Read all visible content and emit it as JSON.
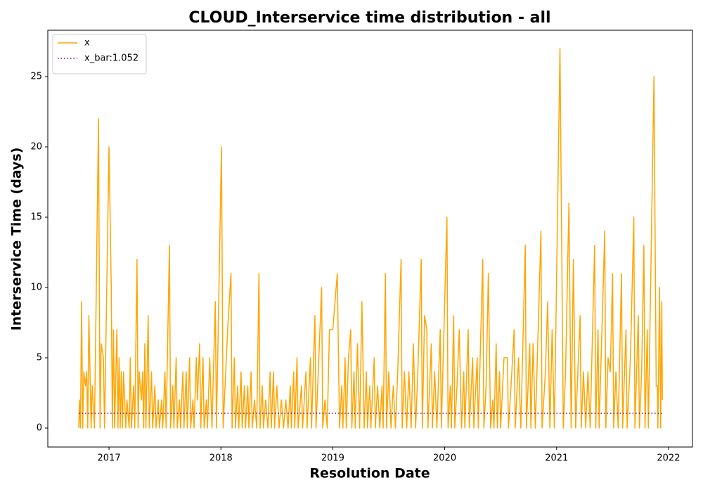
{
  "chart_data": {
    "type": "line",
    "title": "CLOUD_Interservice time distribution - all",
    "x_label": "Resolution Date",
    "y_label": "Interservice Time (days)",
    "xlim": [
      2016.453,
      2022.214
    ],
    "ylim": [
      -1.35,
      28.3
    ],
    "xticks": [
      2017,
      2018,
      2019,
      2020,
      2021,
      2022
    ],
    "yticks": [
      0,
      5,
      10,
      15,
      20,
      25
    ],
    "grid": false,
    "legend": "upper left",
    "series": [
      {
        "name": "x",
        "color": "#ffa500",
        "style": "solid",
        "x": [
          2016.73,
          2016.735,
          2016.745,
          2016.755,
          2016.765,
          2016.775,
          2016.79,
          2016.8,
          2016.81,
          2016.82,
          2016.84,
          2016.85,
          2016.87,
          2016.906,
          2016.92,
          2016.93,
          2016.95,
          2016.96,
          2017.0,
          2017.02,
          2017.03,
          2017.04,
          2017.05,
          2017.07,
          2017.08,
          2017.09,
          2017.1,
          2017.11,
          2017.12,
          2017.13,
          2017.15,
          2017.16,
          2017.18,
          2017.19,
          2017.2,
          2017.22,
          2017.23,
          2017.25,
          2017.26,
          2017.27,
          2017.29,
          2017.3,
          2017.31,
          2017.32,
          2017.33,
          2017.35,
          2017.36,
          2017.38,
          2017.39,
          2017.41,
          2017.42,
          2017.44,
          2017.45,
          2017.47,
          2017.48,
          2017.5,
          2017.51,
          2017.54,
          2017.55,
          2017.57,
          2017.58,
          2017.6,
          2017.61,
          2017.63,
          2017.64,
          2017.66,
          2017.67,
          2017.69,
          2017.7,
          2017.72,
          2017.73,
          2017.75,
          2017.76,
          2017.78,
          2017.79,
          2017.8,
          2017.81,
          2017.82,
          2017.84,
          2017.85,
          2017.87,
          2017.88,
          2017.9,
          2017.92,
          2017.95,
          2017.96,
          2018.005,
          2018.02,
          2018.06,
          2018.09,
          2018.1,
          2018.12,
          2018.13,
          2018.15,
          2018.16,
          2018.18,
          2018.19,
          2018.21,
          2018.22,
          2018.24,
          2018.25,
          2018.27,
          2018.28,
          2018.3,
          2018.32,
          2018.34,
          2018.35,
          2018.37,
          2018.38,
          2018.4,
          2018.42,
          2018.44,
          2018.45,
          2018.47,
          2018.48,
          2018.5,
          2018.52,
          2018.54,
          2018.56,
          2018.58,
          2018.6,
          2018.62,
          2018.63,
          2018.65,
          2018.66,
          2018.68,
          2018.69,
          2018.72,
          2018.73,
          2018.76,
          2018.77,
          2018.8,
          2018.81,
          2018.84,
          2018.85,
          2018.9,
          2018.91,
          2018.93,
          2018.95,
          2018.97,
          2019.0,
          2019.04,
          2019.06,
          2019.08,
          2019.09,
          2019.11,
          2019.12,
          2019.14,
          2019.16,
          2019.17,
          2019.19,
          2019.2,
          2019.22,
          2019.24,
          2019.26,
          2019.28,
          2019.3,
          2019.31,
          2019.33,
          2019.34,
          2019.37,
          2019.38,
          2019.4,
          2019.42,
          2019.44,
          2019.45,
          2019.47,
          2019.48,
          2019.5,
          2019.52,
          2019.54,
          2019.56,
          2019.58,
          2019.61,
          2019.62,
          2019.64,
          2019.66,
          2019.68,
          2019.7,
          2019.72,
          2019.74,
          2019.76,
          2019.79,
          2019.8,
          2019.82,
          2019.84,
          2019.85,
          2019.88,
          2019.89,
          2019.91,
          2019.93,
          2019.96,
          2019.97,
          2020.02,
          2020.03,
          2020.05,
          2020.06,
          2020.08,
          2020.09,
          2020.11,
          2020.13,
          2020.15,
          2020.17,
          2020.18,
          2020.21,
          2020.22,
          2020.25,
          2020.26,
          2020.29,
          2020.3,
          2020.34,
          2020.35,
          2020.37,
          2020.39,
          2020.41,
          2020.43,
          2020.44,
          2020.46,
          2020.47,
          2020.49,
          2020.5,
          2020.53,
          2020.56,
          2020.57,
          2020.6,
          2020.62,
          2020.63,
          2020.66,
          2020.68,
          2020.72,
          2020.73,
          2020.76,
          2020.77,
          2020.79,
          2020.81,
          2020.86,
          2020.87,
          2020.9,
          2020.92,
          2020.94,
          2020.96,
          2020.98,
          2021.03,
          2021.06,
          2021.08,
          2021.11,
          2021.13,
          2021.15,
          2021.17,
          2021.21,
          2021.22,
          2021.24,
          2021.26,
          2021.28,
          2021.3,
          2021.34,
          2021.35,
          2021.37,
          2021.38,
          2021.43,
          2021.44,
          2021.46,
          2021.48,
          2021.5,
          2021.51,
          2021.53,
          2021.55,
          2021.58,
          2021.59,
          2021.62,
          2021.63,
          2021.66,
          2021.69,
          2021.7,
          2021.73,
          2021.74,
          2021.76,
          2021.78,
          2021.79,
          2021.81,
          2021.82,
          2021.87,
          2021.89,
          2021.9,
          2021.905,
          2021.92,
          2021.93,
          2021.94,
          2021.945
        ],
        "values": [
          0,
          2,
          0,
          9,
          0,
          4,
          3,
          4,
          0,
          8,
          0,
          3,
          0,
          22,
          0,
          6,
          5,
          0,
          20,
          10,
          0,
          7,
          0,
          7,
          0,
          5,
          0,
          4,
          0,
          4,
          0,
          2,
          0,
          5,
          0,
          3,
          0,
          12,
          0,
          4,
          2,
          4,
          0,
          6,
          0,
          8,
          0,
          4,
          0,
          3,
          0,
          2,
          0,
          2,
          0,
          4,
          0,
          13,
          0,
          3,
          0,
          5,
          0,
          2,
          0,
          4,
          0,
          4,
          0,
          5,
          0,
          2,
          0,
          5,
          2,
          4,
          6,
          0,
          5,
          0,
          2,
          0,
          5,
          0,
          9,
          0,
          20,
          0,
          7,
          11,
          0,
          5,
          0,
          3,
          0,
          4,
          0,
          3,
          0,
          3,
          0,
          4,
          0,
          2,
          0,
          11,
          0,
          3,
          0,
          2,
          0,
          4,
          0,
          4,
          0,
          3,
          0,
          2,
          0,
          2,
          0,
          3,
          0,
          4,
          0,
          5,
          0,
          3,
          0,
          4,
          0,
          5,
          0,
          8,
          0,
          10,
          0,
          2,
          0,
          7,
          7,
          11,
          0,
          3,
          0,
          5,
          0,
          5,
          7,
          0,
          4,
          0,
          6,
          0,
          9,
          0,
          4,
          0,
          3,
          0,
          5,
          0,
          3,
          0,
          3,
          0,
          11,
          0,
          4,
          0,
          3,
          0,
          4,
          12,
          0,
          4,
          0,
          4,
          0,
          6,
          0,
          4,
          12,
          0,
          8,
          7,
          0,
          6,
          0,
          4,
          0,
          7,
          0,
          15,
          0,
          3,
          0,
          8,
          0,
          3,
          7,
          0,
          4,
          0,
          7,
          0,
          5,
          0,
          5,
          0,
          12,
          0,
          3,
          11,
          0,
          2,
          0,
          6,
          0,
          4,
          0,
          5,
          5,
          0,
          4,
          7,
          0,
          5,
          0,
          13,
          0,
          6,
          0,
          6,
          0,
          14,
          0,
          4,
          9,
          0,
          7,
          0,
          27,
          0,
          4,
          16,
          0,
          12,
          0,
          8,
          0,
          4,
          0,
          4,
          0,
          13,
          0,
          7,
          0,
          14,
          0,
          5,
          4,
          11,
          0,
          4,
          0,
          11,
          0,
          7,
          0,
          5,
          15,
          0,
          8,
          0,
          4,
          13,
          0,
          7,
          0,
          25,
          3,
          3,
          0,
          10,
          0,
          9,
          2
        ]
      },
      {
        "name": "x_bar:1.052",
        "color": "#800080",
        "style": "dotted",
        "x": [
          2016.73,
          2021.945
        ],
        "values": [
          1.052,
          1.052
        ]
      }
    ]
  }
}
